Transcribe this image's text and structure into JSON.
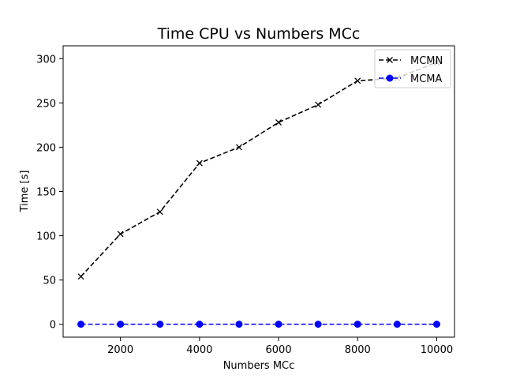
{
  "chart_data": {
    "type": "line",
    "title": "Time CPU vs Numbers MCc",
    "xlabel": "Numbers MCc",
    "ylabel": "Time [s]",
    "xlim": [
      550,
      10450
    ],
    "ylim": [
      -14.5,
      314.5
    ],
    "xticks": [
      2000,
      4000,
      6000,
      8000,
      10000
    ],
    "xtick_labels": [
      "2000",
      "4000",
      "6000",
      "8000",
      "10000"
    ],
    "yticks": [
      0,
      50,
      100,
      150,
      200,
      250,
      300
    ],
    "ytick_labels": [
      "0",
      "50",
      "100",
      "150",
      "200",
      "250",
      "300"
    ],
    "grid": false,
    "legend_position": "top-right",
    "series": [
      {
        "name": "MCMN",
        "color": "#000000",
        "marker": "x",
        "linestyle": "dashed",
        "x": [
          1000,
          2000,
          3000,
          4000,
          5000,
          6000,
          7000,
          8000,
          9000,
          10000
        ],
        "y": [
          54,
          102,
          127,
          182,
          200,
          228,
          248,
          275,
          278,
          296
        ]
      },
      {
        "name": "MCMA",
        "color": "#0000ff",
        "marker": "o",
        "linestyle": "dashed",
        "x": [
          1000,
          2000,
          3000,
          4000,
          5000,
          6000,
          7000,
          8000,
          9000,
          10000
        ],
        "y": [
          0.1,
          0.1,
          0.1,
          0.1,
          0.1,
          0.1,
          0.1,
          0.1,
          0.1,
          0.1
        ]
      }
    ]
  }
}
